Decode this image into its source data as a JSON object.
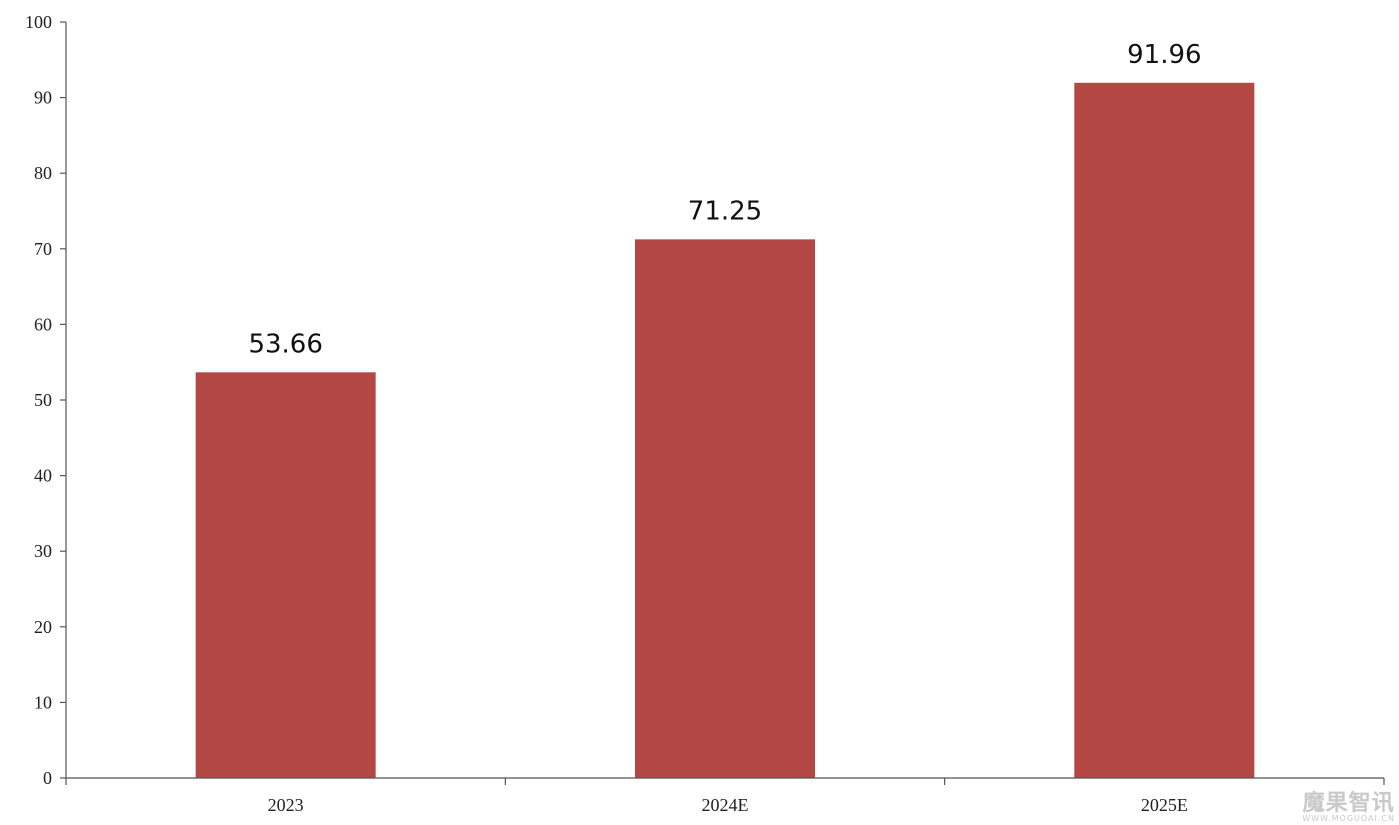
{
  "chart_data": {
    "type": "bar",
    "categories": [
      "2023",
      "2024E",
      "2025E"
    ],
    "values": [
      53.66,
      71.25,
      91.96
    ],
    "data_labels": [
      "53.66",
      "71.25",
      "91.96"
    ],
    "title": "",
    "xlabel": "",
    "ylabel": "",
    "ylim": [
      0,
      100
    ],
    "yticks": [
      0,
      10,
      20,
      30,
      40,
      50,
      60,
      70,
      80,
      90,
      100
    ],
    "grid": false,
    "bar_color": "#b24744"
  },
  "watermark": {
    "main": "魔果智讯",
    "sub": "WWW.MOGUOAI.CN"
  }
}
